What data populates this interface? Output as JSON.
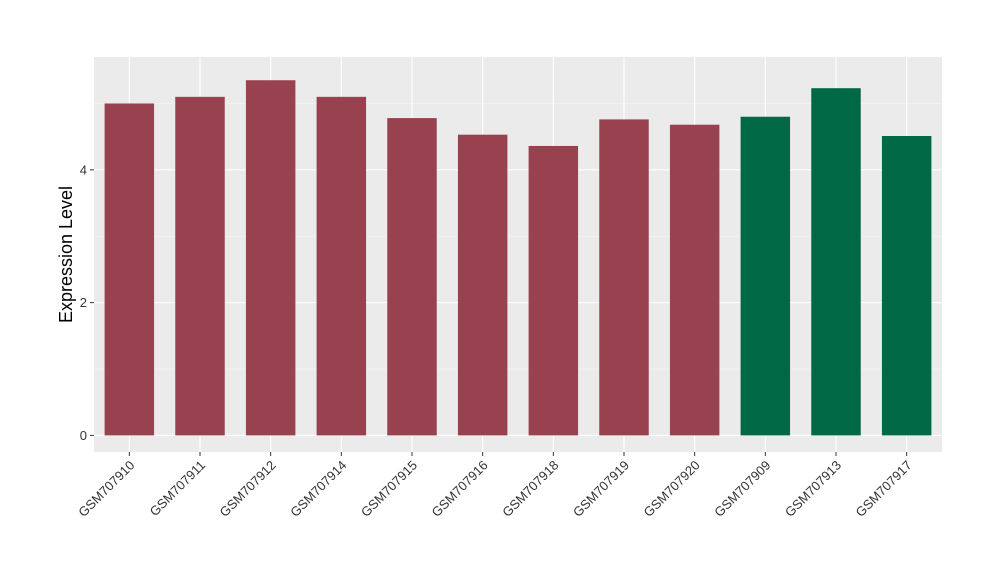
{
  "chart_data": {
    "type": "bar",
    "xlabel": "",
    "ylabel": "Expression Level",
    "ylim": [
      -0.25,
      5.7
    ],
    "yticks": [
      0,
      2,
      4
    ],
    "grid": true,
    "categories": [
      "GSM707910",
      "GSM707911",
      "GSM707912",
      "GSM707914",
      "GSM707915",
      "GSM707916",
      "GSM707918",
      "GSM707919",
      "GSM707920",
      "GSM707909",
      "GSM707913",
      "GSM707917"
    ],
    "values": [
      5.0,
      5.1,
      5.35,
      5.1,
      4.78,
      4.53,
      4.36,
      4.76,
      4.68,
      4.8,
      5.23,
      4.51
    ],
    "groups": [
      "a",
      "a",
      "a",
      "a",
      "a",
      "a",
      "a",
      "a",
      "a",
      "b",
      "b",
      "b"
    ],
    "colors": {
      "a": "#99424f",
      "b": "#006845",
      "panel": "#ebebeb",
      "grid_major": "#ffffff",
      "grid_minor": "#f5f5f5",
      "text": "#333333",
      "title": "#000000"
    }
  }
}
